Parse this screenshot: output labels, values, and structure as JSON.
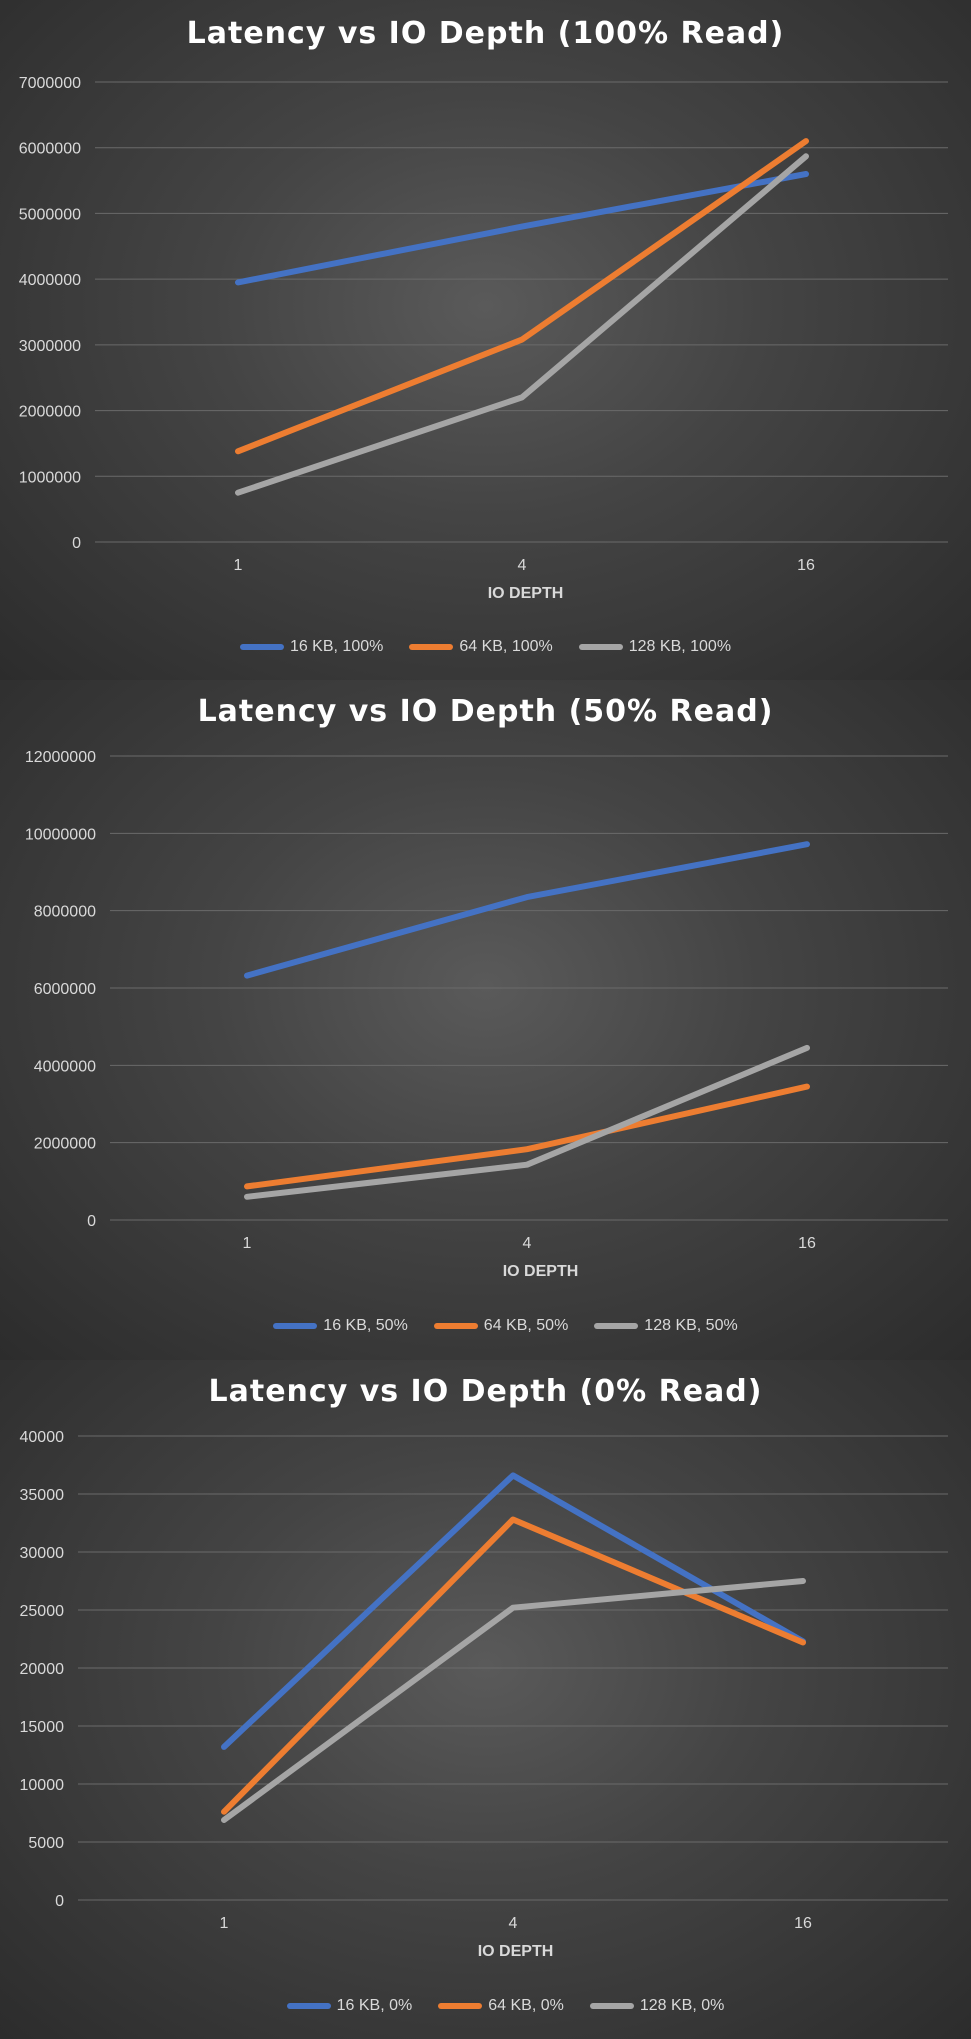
{
  "chart_data": [
    {
      "type": "line",
      "title": "Latency vs IO Depth (100% Read)",
      "xlabel": "IO DEPTH",
      "ylabel": "",
      "categories": [
        "1",
        "4",
        "16"
      ],
      "ylim": [
        0,
        7000000
      ],
      "yticks": [
        "0",
        "1000000",
        "2000000",
        "3000000",
        "4000000",
        "5000000",
        "6000000",
        "7000000"
      ],
      "grid": true,
      "legend": "bottom",
      "series": [
        {
          "name": "16 KB, 100%",
          "color": "#4472c4",
          "values": [
            3950000,
            4800000,
            5600000
          ]
        },
        {
          "name": "64 KB, 100%",
          "color": "#ed7d31",
          "values": [
            1380000,
            3080000,
            6100000
          ]
        },
        {
          "name": "128 KB, 100%",
          "color": "#a5a5a5",
          "values": [
            750000,
            2200000,
            5870000
          ]
        }
      ]
    },
    {
      "type": "line",
      "title": "Latency vs IO Depth (50% Read)",
      "xlabel": "IO DEPTH",
      "ylabel": "",
      "categories": [
        "1",
        "4",
        "16"
      ],
      "ylim": [
        0,
        12000000
      ],
      "yticks": [
        "0",
        "2000000",
        "4000000",
        "6000000",
        "8000000",
        "10000000",
        "12000000"
      ],
      "grid": true,
      "legend": "bottom",
      "series": [
        {
          "name": "16 KB, 50%",
          "color": "#4472c4",
          "values": [
            6320000,
            8350000,
            9720000
          ]
        },
        {
          "name": "64 KB, 50%",
          "color": "#ed7d31",
          "values": [
            870000,
            1830000,
            3450000
          ]
        },
        {
          "name": "128 KB, 50%",
          "color": "#a5a5a5",
          "values": [
            600000,
            1430000,
            4450000
          ]
        }
      ]
    },
    {
      "type": "line",
      "title": "Latency vs IO Depth (0% Read)",
      "xlabel": "IO DEPTH",
      "ylabel": "",
      "categories": [
        "1",
        "4",
        "16"
      ],
      "ylim": [
        0,
        40000
      ],
      "yticks": [
        "0",
        "5000",
        "10000",
        "15000",
        "20000",
        "25000",
        "30000",
        "35000",
        "40000"
      ],
      "grid": true,
      "legend": "bottom",
      "series": [
        {
          "name": "16 KB, 0%",
          "color": "#4472c4",
          "values": [
            13200,
            36600,
            22300
          ]
        },
        {
          "name": "64 KB, 0%",
          "color": "#ed7d31",
          "values": [
            7600,
            32800,
            22200
          ]
        },
        {
          "name": "128 KB, 0%",
          "color": "#a5a5a5",
          "values": [
            6900,
            25200,
            27500
          ]
        }
      ]
    }
  ]
}
